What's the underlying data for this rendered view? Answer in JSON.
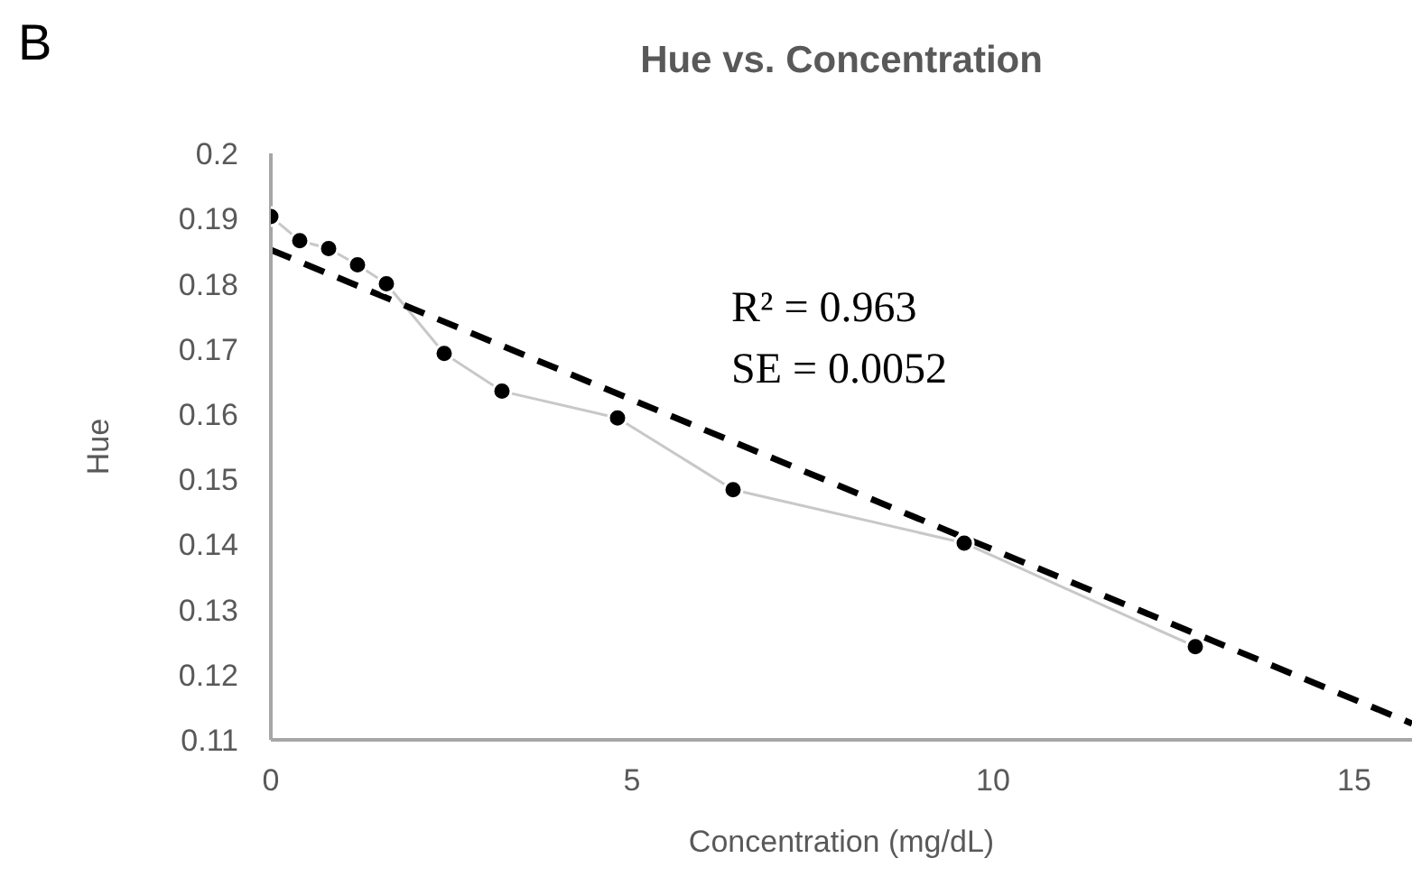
{
  "chart_data": {
    "type": "line",
    "title": "Hue vs. Concentration",
    "xlabel": "Concentration (mg/dL)",
    "ylabel": "Hue",
    "annotations": [
      "B",
      "R² = 0.963",
      "SE = 0.0052"
    ],
    "xlim": [
      0,
      15.8
    ],
    "xticks": [
      0,
      5,
      10,
      15
    ],
    "ylim": [
      0.11,
      0.2
    ],
    "yticks": [
      0.11,
      0.12,
      0.13,
      0.14,
      0.15,
      0.16,
      0.17,
      0.18,
      0.19,
      0.2
    ],
    "grid": false,
    "series": [
      {
        "color": "#c8c8c8",
        "marker": "circle",
        "line_style": "solid",
        "x": [
          0,
          0.4,
          0.8,
          1.2,
          1.6,
          2.4,
          3.2,
          4.8,
          6.4,
          9.6,
          12.8
        ],
        "values": [
          0.1903,
          0.1866,
          0.1854,
          0.1829,
          0.18,
          0.1693,
          0.1635,
          0.1594,
          0.1484,
          0.1402,
          0.1243
        ]
      },
      {
        "color": "#000000",
        "marker": "none",
        "line_style": "dashed",
        "x": [
          0,
          15.8
        ],
        "values": [
          0.1852,
          0.1125
        ]
      }
    ]
  }
}
